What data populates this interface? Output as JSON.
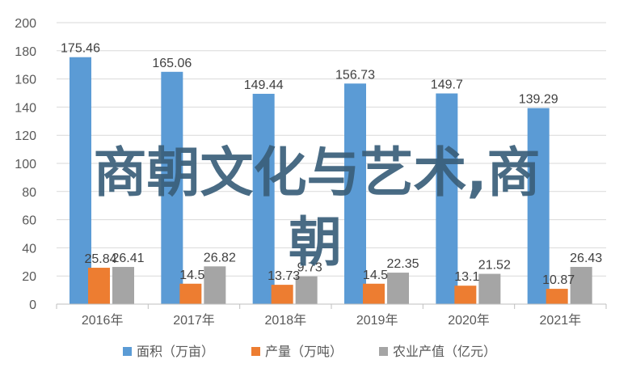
{
  "chart_data": {
    "type": "bar",
    "title": "",
    "xlabel": "",
    "ylabel": "",
    "ylim": [
      0,
      200
    ],
    "yticks": [
      0,
      20,
      40,
      60,
      80,
      100,
      120,
      140,
      160,
      180,
      200
    ],
    "grid": true,
    "legend_position": "bottom",
    "categories": [
      "2016年",
      "2017年",
      "2018年",
      "2019年",
      "2020年",
      "2021年"
    ],
    "series": [
      {
        "name": "面积（万亩）",
        "color": "#5b9bd5",
        "values": [
          175.46,
          165.06,
          149.44,
          156.73,
          149.7,
          139.29
        ]
      },
      {
        "name": "产量（万吨）",
        "color": "#ed7d31",
        "values": [
          25.84,
          14.5,
          13.73,
          14.5,
          13.1,
          10.87
        ]
      },
      {
        "name": "农业产值（亿元）",
        "color": "#a5a5a5",
        "values": [
          26.41,
          26.82,
          19.73,
          22.35,
          21.52,
          26.43
        ]
      }
    ],
    "data_labels": [
      [
        "175.46",
        "165.06",
        "149.44",
        "156.73",
        "149.7",
        "139.29"
      ],
      [
        "25.84",
        "14.5",
        "13.73",
        "14.5",
        "13.1",
        "10.87"
      ],
      [
        "26.41",
        "26.82",
        "",
        "22.35",
        "21.52",
        "26.43"
      ]
    ]
  },
  "overlay": {
    "line1": "商朝文化与艺术,商",
    "line2": "朝",
    "partial_label": "9.73",
    "color": "#3a5f7a"
  }
}
